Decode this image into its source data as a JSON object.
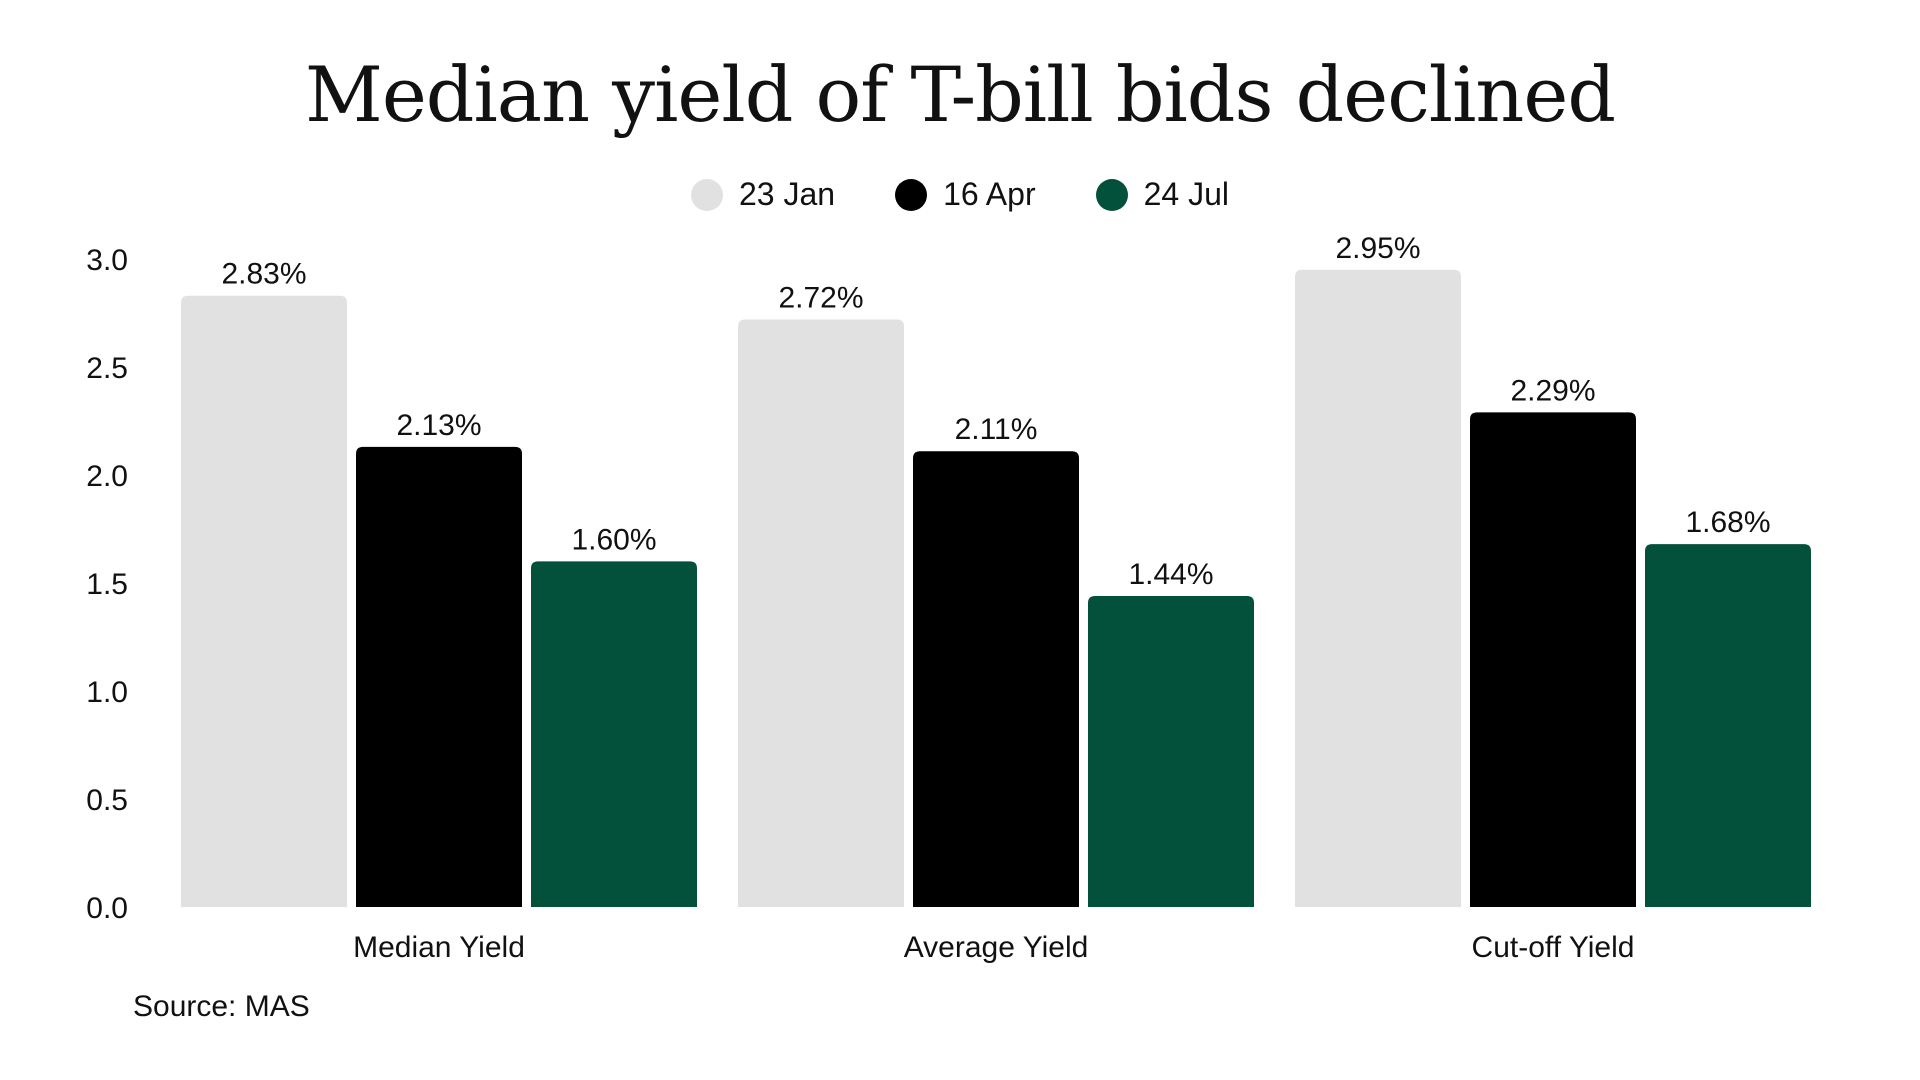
{
  "chart_data": {
    "type": "bar",
    "title": "Median yield of T-bill bids declined",
    "categories": [
      "Median Yield",
      "Average Yield",
      "Cut-off Yield"
    ],
    "series": [
      {
        "name": "23 Jan",
        "color": "#e1e1e1",
        "values": [
          2.83,
          2.72,
          2.95
        ],
        "labels": [
          "2.83%",
          "2.72%",
          "2.95%"
        ]
      },
      {
        "name": "16 Apr",
        "color": "#000000",
        "values": [
          2.13,
          2.11,
          2.29
        ],
        "labels": [
          "2.13%",
          "2.11%",
          "2.29%"
        ]
      },
      {
        "name": "24 Jul",
        "color": "#03513b",
        "values": [
          1.6,
          1.44,
          1.68
        ],
        "labels": [
          "1.60%",
          "1.44%",
          "1.68%"
        ]
      }
    ],
    "yticks": [
      "0.0",
      "0.5",
      "1.0",
      "1.5",
      "2.0",
      "2.5",
      "3.0"
    ],
    "ylim": [
      0,
      3.0
    ],
    "xlabel": "",
    "ylabel": "",
    "legend_position": "top-center",
    "grid": false
  },
  "footer": {
    "source": "Source: MAS"
  }
}
